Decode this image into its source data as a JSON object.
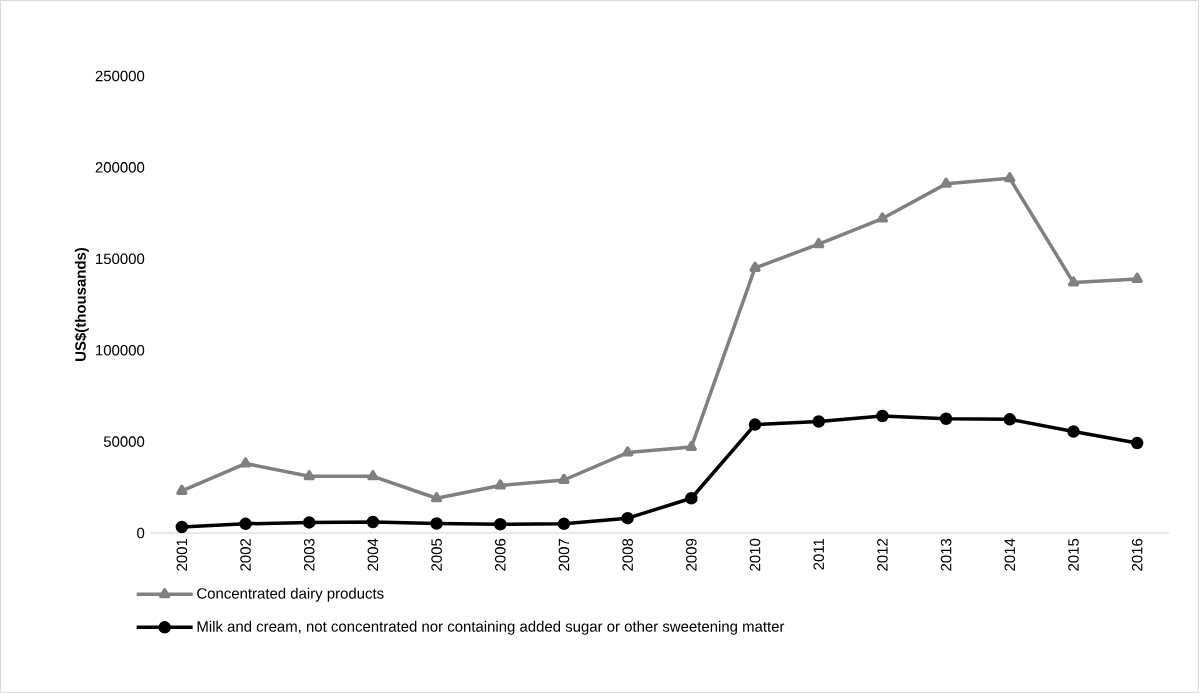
{
  "chart_data": {
    "type": "line",
    "ylabel": "US$(thousands)",
    "categories": [
      "2001",
      "2002",
      "2003",
      "2004",
      "2005",
      "2006",
      "2007",
      "2008",
      "2009",
      "2010",
      "2011",
      "2012",
      "2013",
      "2014",
      "2015",
      "2016"
    ],
    "series": [
      {
        "name": "Concentrated  dairy products",
        "color": "#808080",
        "marker": "triangle",
        "values": [
          23000,
          38000,
          31000,
          31000,
          19000,
          26000,
          29000,
          44000,
          47000,
          145000,
          158000,
          172000,
          191000,
          194000,
          137000,
          139000
        ]
      },
      {
        "name": "Milk and cream, not concentrated nor containing added sugar or other sweetening matter",
        "color": "#000000",
        "marker": "circle",
        "values": [
          3300,
          5000,
          5800,
          6000,
          5200,
          4800,
          5000,
          8100,
          19000,
          59300,
          61000,
          64000,
          62500,
          62200,
          55500,
          49200
        ]
      }
    ],
    "ylim": [
      0,
      250000
    ],
    "yticks": [
      0,
      50000,
      100000,
      150000,
      200000,
      250000
    ],
    "grid": false,
    "legend": "bottom",
    "line_style": "solid"
  }
}
